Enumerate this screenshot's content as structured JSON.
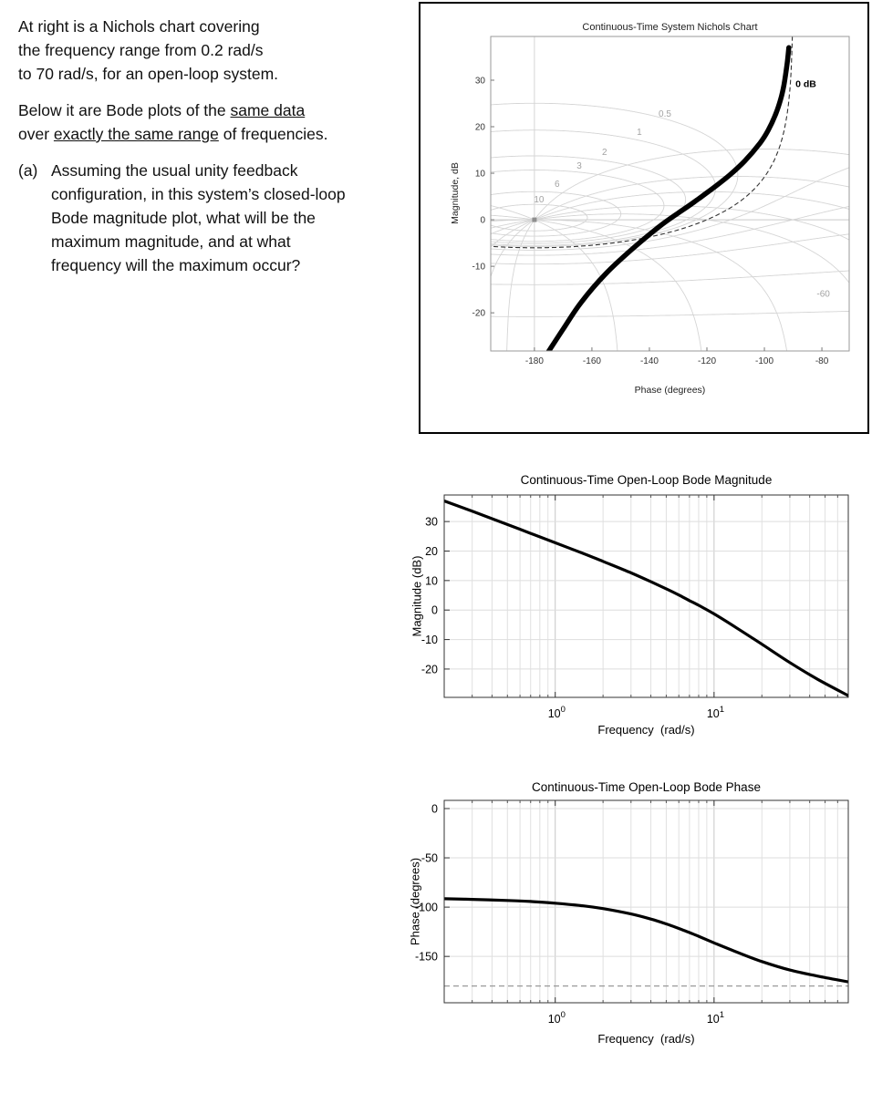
{
  "problem": {
    "p1_lines": [
      "At right is a Nichols chart covering",
      "the frequency range from 0.2 rad/s",
      "to 70 rad/s, for an open-loop system."
    ],
    "p2_l1_pre": "Below it are Bode plots of the ",
    "p2_l1_u": "same data",
    "p2_l2_pre": "over ",
    "p2_l2_u": "exactly the same range",
    "p2_l2_post": " of frequencies.",
    "a_label": "(a)",
    "a_lines": [
      "Assuming the usual unity feedback",
      "configuration, in this system’s closed-loop",
      "Bode magnitude plot, what will be the",
      "maximum magnitude, and at what",
      "frequency will the maximum occur?"
    ]
  },
  "chart_data": {
    "open_loop_response": {
      "freq_rad_s": [
        0.2,
        0.3,
        0.5,
        0.7,
        1,
        1.5,
        2,
        3,
        4,
        5,
        6,
        7,
        8,
        10,
        14,
        20,
        30,
        45,
        70
      ],
      "magnitude_db": [
        37,
        33.5,
        29,
        26,
        22.8,
        19.2,
        16.5,
        12.6,
        9.6,
        7.2,
        5.1,
        3.2,
        1.6,
        -1.3,
        -6.2,
        -11.6,
        -17.8,
        -23.5,
        -29
      ],
      "phase_deg": [
        -91.5,
        -92.1,
        -93.2,
        -94.3,
        -96,
        -98.7,
        -101.5,
        -106.9,
        -112.1,
        -117,
        -121.6,
        -125.8,
        -129.6,
        -136.2,
        -145.8,
        -155.2,
        -163.8,
        -170,
        -175.8
      ]
    },
    "nichols": {
      "type": "line",
      "title": "Continuous-Time System Nichols Chart",
      "xlabel": "Phase (degrees)",
      "ylabel": "Magnitude, dB",
      "xlim": [
        -195.2,
        -70.5
      ],
      "ylim": [
        -28.2,
        39.4
      ],
      "xticks": [
        -180,
        -160,
        -140,
        -120,
        -100,
        -80
      ],
      "yticks": [
        30,
        20,
        10,
        0,
        -10,
        -20
      ],
      "m_contours_db": [
        10,
        6,
        3,
        2,
        1,
        0.5,
        -1,
        -3,
        -6,
        -12,
        -20
      ],
      "n_contours_deg": [
        -10,
        -20,
        -30,
        -45,
        -60,
        -90,
        -120,
        -150
      ],
      "zero_db_contour_style": "dashed",
      "grid_labels": [
        {
          "text": "0.5",
          "phase": -134.6,
          "db": 22.2
        },
        {
          "text": "1",
          "phase": -143.5,
          "db": 18.2
        },
        {
          "text": "2",
          "phase": -155.6,
          "db": 13.9
        },
        {
          "text": "3",
          "phase": -164.4,
          "db": 11.0
        },
        {
          "text": "6",
          "phase": -172.1,
          "db": 7.1
        },
        {
          "text": "10",
          "phase": -178.4,
          "db": 3.7
        },
        {
          "text": "0 dB",
          "phase": -89.2,
          "db": 28.5,
          "bold": true
        },
        {
          "text": "-60",
          "phase": -79.5,
          "db": -16.5
        }
      ],
      "critical_point": {
        "phase": -180,
        "db": 0
      }
    },
    "bode_magnitude": {
      "type": "line",
      "title": "Continuous-Time Open-Loop Bode Magnitude",
      "xlabel": "Frequency  (rad/s)",
      "ylabel": "Magnitude (dB)",
      "xscale": "log",
      "xlim": [
        0.2,
        70
      ],
      "ylim": [
        -29.6,
        39
      ],
      "yticks": [
        30,
        20,
        10,
        0,
        -10,
        -20
      ],
      "xtick_base": "10",
      "xtick_exponents": [
        0,
        1
      ]
    },
    "bode_phase": {
      "type": "line",
      "title": "Continuous-Time Open-Loop Bode Phase",
      "xlabel": "Frequency  (rad/s)",
      "ylabel": "Phase (degrees)",
      "xscale": "log",
      "xlim": [
        0.2,
        70
      ],
      "ylim": [
        -197,
        8.3
      ],
      "yticks": [
        0,
        -50,
        -100,
        -150
      ],
      "reference_line_deg": -180,
      "xtick_base": "10",
      "xtick_exponents": [
        0,
        1
      ]
    }
  }
}
